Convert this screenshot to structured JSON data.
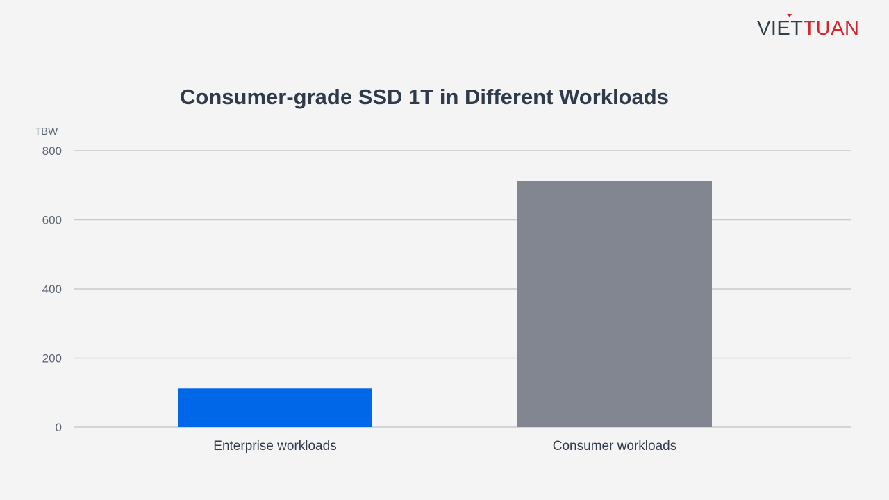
{
  "brand": {
    "logo_text": "VIETTUAN",
    "colors": {
      "dark": "#333f48",
      "red": "#d8232a"
    }
  },
  "chart_data": {
    "type": "bar",
    "title": "Consumer-grade SSD 1T in Different Workloads",
    "ylabel": "TBW",
    "xlabel": "",
    "categories": [
      "Enterprise workloads",
      "Consumer workloads"
    ],
    "values": [
      112,
      712
    ],
    "bar_colors": [
      "#0068e8",
      "#818690"
    ],
    "ylim": [
      0,
      800
    ],
    "yticks": [
      0,
      200,
      400,
      600,
      800
    ],
    "grid": true,
    "grid_color": "#c8cad2",
    "legend": "none"
  }
}
